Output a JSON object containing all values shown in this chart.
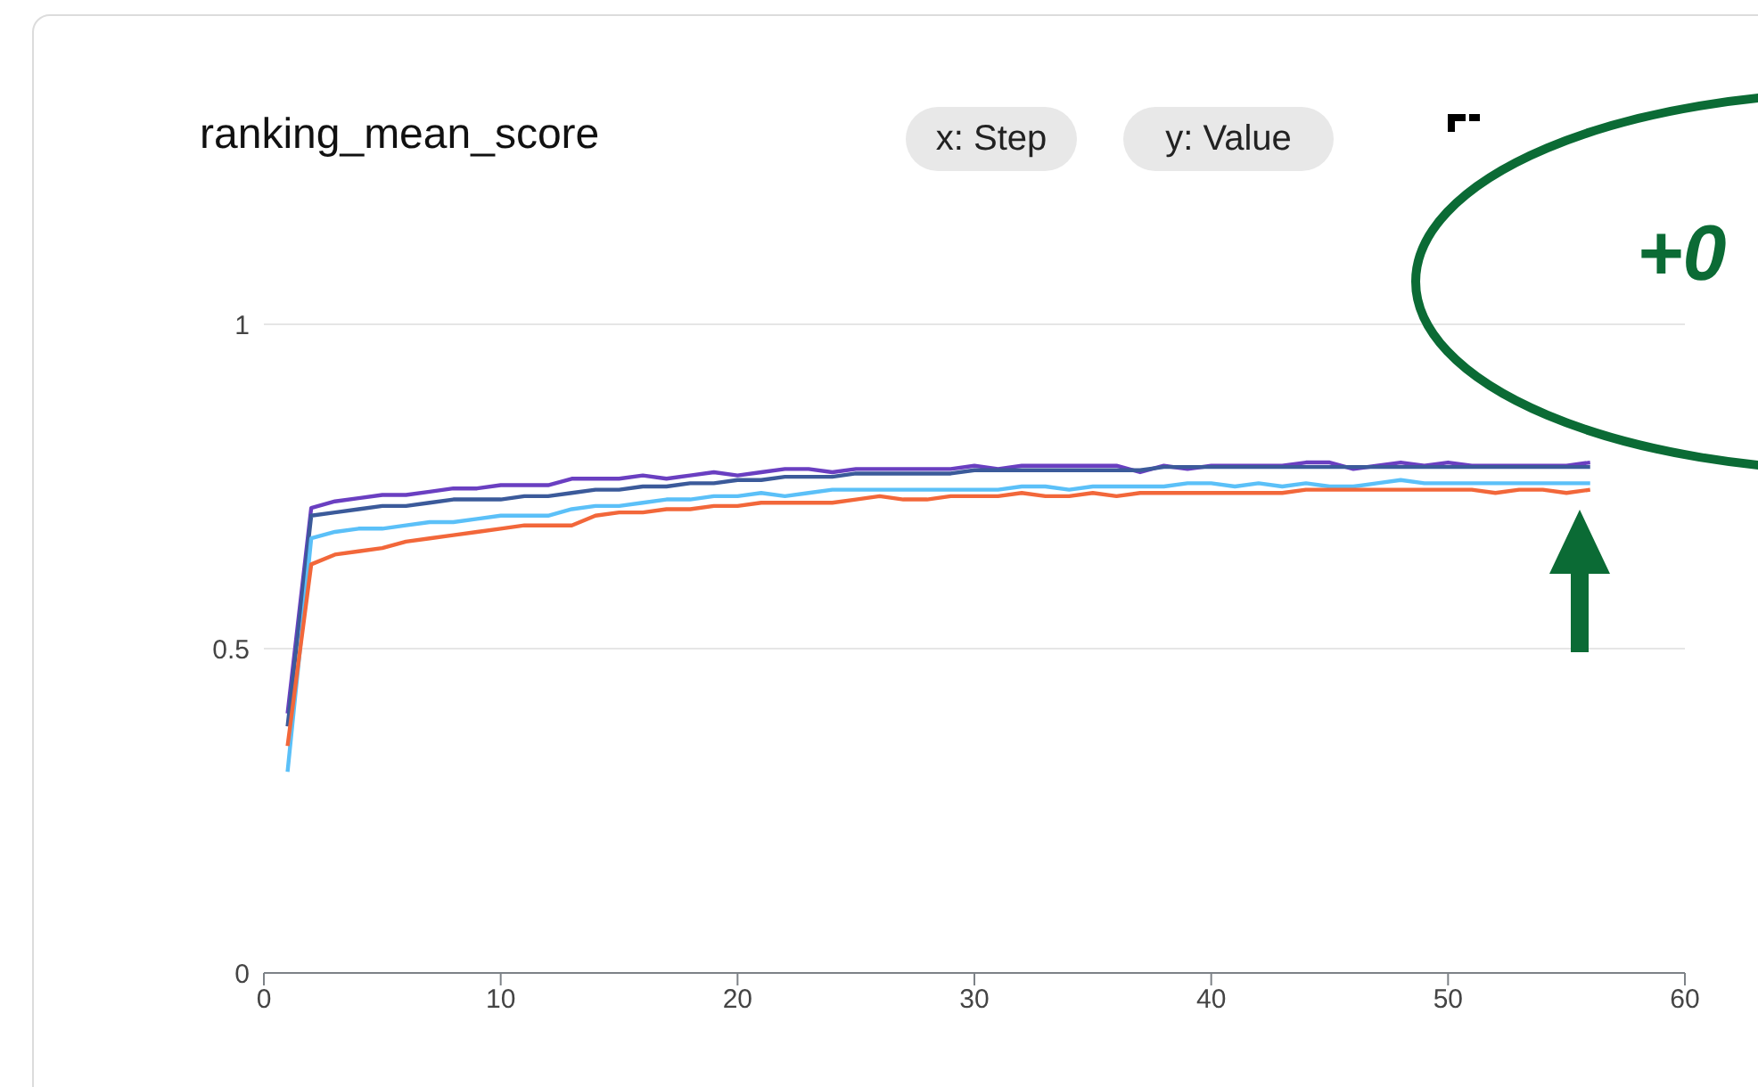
{
  "chart_data": {
    "type": "line",
    "title": "ranking_mean_score",
    "annotations": [
      "x: Step",
      "y: Value",
      "+0"
    ],
    "x": [
      1,
      2,
      3,
      4,
      5,
      6,
      7,
      8,
      9,
      10,
      11,
      12,
      13,
      14,
      15,
      16,
      17,
      18,
      19,
      20,
      21,
      22,
      23,
      24,
      25,
      26,
      27,
      28,
      29,
      30,
      31,
      32,
      33,
      34,
      35,
      36,
      37,
      38,
      39,
      40,
      41,
      42,
      43,
      44,
      45,
      46,
      47,
      48,
      49,
      50,
      51,
      52,
      53,
      54,
      55,
      56
    ],
    "series": [
      {
        "color": "#6a3fc1",
        "values": [
          0.4,
          0.717,
          0.727,
          0.732,
          0.737,
          0.737,
          0.742,
          0.747,
          0.747,
          0.752,
          0.752,
          0.752,
          0.762,
          0.762,
          0.762,
          0.767,
          0.762,
          0.767,
          0.772,
          0.767,
          0.772,
          0.777,
          0.777,
          0.772,
          0.777,
          0.777,
          0.777,
          0.777,
          0.777,
          0.782,
          0.777,
          0.782,
          0.782,
          0.782,
          0.782,
          0.782,
          0.772,
          0.782,
          0.777,
          0.782,
          0.782,
          0.782,
          0.782,
          0.787,
          0.787,
          0.777,
          0.782,
          0.787,
          0.782,
          0.787,
          0.782,
          0.782,
          0.782,
          0.782,
          0.782,
          0.787
        ]
      },
      {
        "color": "#3b5a9a",
        "values": [
          0.38,
          0.705,
          0.71,
          0.715,
          0.72,
          0.72,
          0.725,
          0.73,
          0.73,
          0.73,
          0.735,
          0.735,
          0.74,
          0.745,
          0.745,
          0.75,
          0.75,
          0.755,
          0.755,
          0.76,
          0.76,
          0.765,
          0.765,
          0.765,
          0.77,
          0.77,
          0.77,
          0.77,
          0.77,
          0.775,
          0.775,
          0.775,
          0.775,
          0.775,
          0.775,
          0.775,
          0.775,
          0.78,
          0.78,
          0.78,
          0.78,
          0.78,
          0.78,
          0.78,
          0.78,
          0.78,
          0.78,
          0.78,
          0.78,
          0.78,
          0.78,
          0.78,
          0.78,
          0.78,
          0.78,
          0.78
        ]
      },
      {
        "color": "#5bc0f8",
        "values": [
          0.31,
          0.67,
          0.68,
          0.685,
          0.685,
          0.69,
          0.695,
          0.695,
          0.7,
          0.705,
          0.705,
          0.705,
          0.715,
          0.72,
          0.72,
          0.725,
          0.73,
          0.73,
          0.735,
          0.735,
          0.74,
          0.735,
          0.74,
          0.745,
          0.745,
          0.745,
          0.745,
          0.745,
          0.745,
          0.745,
          0.745,
          0.75,
          0.75,
          0.745,
          0.75,
          0.75,
          0.75,
          0.75,
          0.755,
          0.755,
          0.75,
          0.755,
          0.75,
          0.755,
          0.75,
          0.75,
          0.755,
          0.76,
          0.755,
          0.755,
          0.755,
          0.755,
          0.755,
          0.755,
          0.755,
          0.755
        ]
      },
      {
        "color": "#f2673a",
        "values": [
          0.35,
          0.63,
          0.645,
          0.65,
          0.655,
          0.665,
          0.67,
          0.675,
          0.68,
          0.685,
          0.69,
          0.69,
          0.69,
          0.705,
          0.71,
          0.71,
          0.715,
          0.715,
          0.72,
          0.72,
          0.725,
          0.725,
          0.725,
          0.725,
          0.73,
          0.735,
          0.73,
          0.73,
          0.735,
          0.735,
          0.735,
          0.74,
          0.735,
          0.735,
          0.74,
          0.735,
          0.74,
          0.74,
          0.74,
          0.74,
          0.74,
          0.74,
          0.74,
          0.745,
          0.745,
          0.745,
          0.745,
          0.745,
          0.745,
          0.745,
          0.745,
          0.74,
          0.745,
          0.745,
          0.74,
          0.745
        ]
      }
    ],
    "xlim": [
      0,
      60
    ],
    "xticks": [
      0,
      10,
      20,
      30,
      40,
      50,
      60
    ],
    "ylim": [
      0,
      1
    ],
    "yticks": [
      0,
      0.5,
      1
    ],
    "grid": "y",
    "marker": "none",
    "line_style": "solid"
  }
}
